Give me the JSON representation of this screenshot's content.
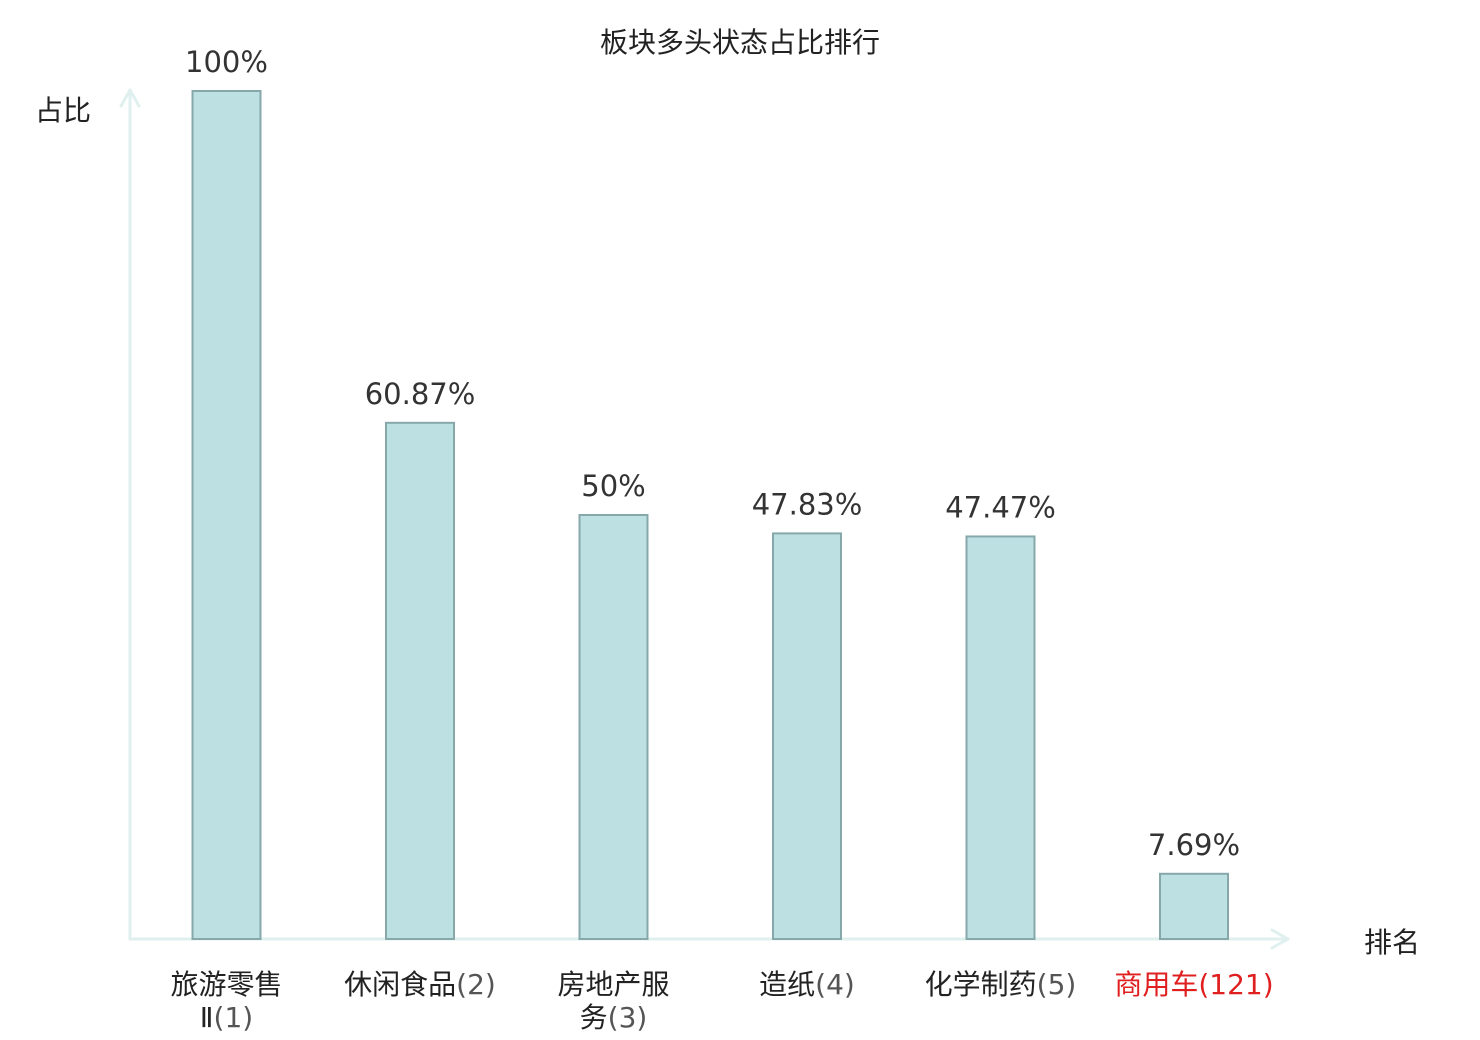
{
  "chart_data": {
    "type": "bar",
    "title": "板块多头状态占比排行",
    "ylabel": "占比",
    "xlabel": "排名",
    "ylim": [
      0,
      100
    ],
    "categories": [
      {
        "name": "旅游零售Ⅱ",
        "rank": "(1)",
        "highlight": false
      },
      {
        "name": "休闲食品",
        "rank": "(2)",
        "highlight": false
      },
      {
        "name": "房地产服务",
        "rank": "(3)",
        "highlight": false
      },
      {
        "name": "造纸",
        "rank": "(4)",
        "highlight": false
      },
      {
        "name": "化学制药",
        "rank": "(5)",
        "highlight": false
      },
      {
        "name": "商用车",
        "rank": "(121)",
        "highlight": true
      }
    ],
    "values": [
      100,
      60.87,
      50,
      47.83,
      47.47,
      7.69
    ],
    "value_labels": [
      "100%",
      "60.87%",
      "50%",
      "47.83%",
      "47.47%",
      "7.69%"
    ],
    "grid": false,
    "colors": {
      "bar_fill": "#bde0e3",
      "bar_stroke": "#86a8ab",
      "axis": "#dff0ee",
      "highlight_text": "#e02020"
    }
  }
}
